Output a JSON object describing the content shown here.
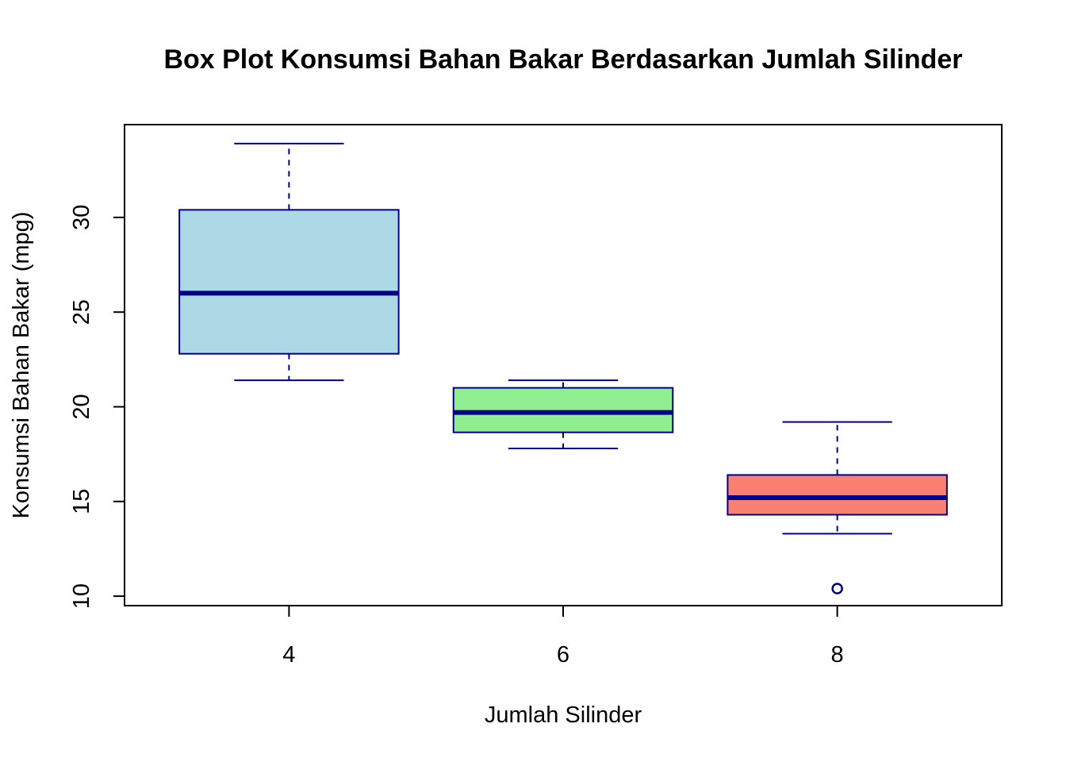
{
  "chart_data": {
    "type": "box",
    "title": "Box Plot Konsumsi Bahan Bakar Berdasarkan Jumlah Silinder",
    "xlabel": "Jumlah Silinder",
    "ylabel": "Konsumsi Bahan Bakar (mpg)",
    "ylim": [
      9.5,
      34.9
    ],
    "yticks": [
      10,
      15,
      20,
      25,
      30
    ],
    "categories": [
      "4",
      "6",
      "8"
    ],
    "boxes": [
      {
        "category": "4",
        "min": 21.4,
        "q1": 22.8,
        "median": 26.0,
        "q3": 30.4,
        "max": 33.9,
        "outliers": [],
        "fill": "#add8e6"
      },
      {
        "category": "6",
        "min": 17.8,
        "q1": 18.65,
        "median": 19.7,
        "q3": 21.0,
        "max": 21.4,
        "outliers": [],
        "fill": "#90ee90"
      },
      {
        "category": "8",
        "min": 13.3,
        "q1": 14.3,
        "median": 15.2,
        "q3": 16.4,
        "max": 19.2,
        "outliers": [
          10.4
        ],
        "fill": "#fa8072"
      }
    ],
    "border_color": "#00008b",
    "grid": false,
    "legend": "none"
  }
}
